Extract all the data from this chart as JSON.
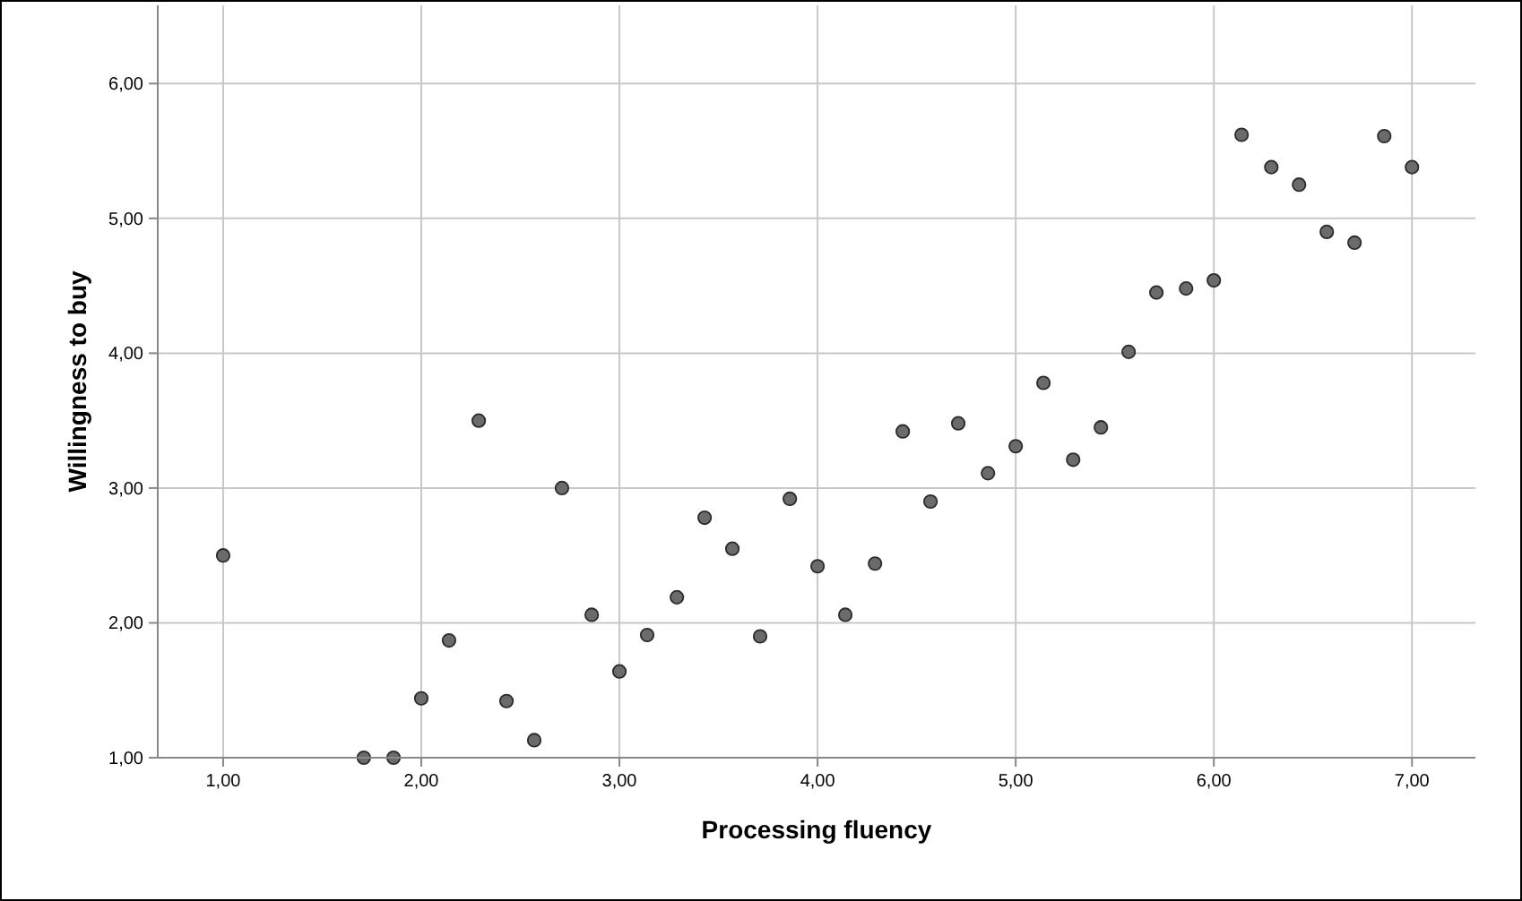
{
  "chart_data": {
    "type": "scatter",
    "xlabel": "Processing fluency",
    "ylabel": "Willingness to buy",
    "xlim": [
      0.67,
      7.32
    ],
    "ylim": [
      1,
      6.58
    ],
    "xticks": [
      {
        "value": 1,
        "label": "1,00"
      },
      {
        "value": 2,
        "label": "2,00"
      },
      {
        "value": 3,
        "label": "3,00"
      },
      {
        "value": 4,
        "label": "4,00"
      },
      {
        "value": 5,
        "label": "5,00"
      },
      {
        "value": 6,
        "label": "6,00"
      },
      {
        "value": 7,
        "label": "7,00"
      }
    ],
    "yticks": [
      {
        "value": 1,
        "label": "1,00"
      },
      {
        "value": 2,
        "label": "2,00"
      },
      {
        "value": 3,
        "label": "3,00"
      },
      {
        "value": 4,
        "label": "4,00"
      },
      {
        "value": 5,
        "label": "5,00"
      },
      {
        "value": 6,
        "label": "6,00"
      }
    ],
    "grid": true,
    "marker": "circle",
    "series": [
      {
        "color": "#6b6b6b",
        "x": [
          1.0,
          1.71,
          1.86,
          2.0,
          2.14,
          2.29,
          2.43,
          2.57,
          2.71,
          2.86,
          3.0,
          3.14,
          3.29,
          3.43,
          3.57,
          3.71,
          3.86,
          4.0,
          4.14,
          4.29,
          4.43,
          4.57,
          4.71,
          4.86,
          5.0,
          5.14,
          5.29,
          5.43,
          5.57,
          5.71,
          5.86,
          6.0,
          6.14,
          6.29,
          6.43,
          6.57,
          6.71,
          6.86,
          7.0
        ],
        "values": [
          2.5,
          1.0,
          1.0,
          1.44,
          1.87,
          3.5,
          1.42,
          1.13,
          3.0,
          2.06,
          1.64,
          1.91,
          2.19,
          2.78,
          2.55,
          1.9,
          2.92,
          2.42,
          2.06,
          2.44,
          3.42,
          2.9,
          3.48,
          3.11,
          3.31,
          3.78,
          3.21,
          3.45,
          4.01,
          4.45,
          4.48,
          4.54,
          5.62,
          5.38,
          5.25,
          4.9,
          4.82,
          5.61,
          5.38
        ]
      }
    ]
  }
}
